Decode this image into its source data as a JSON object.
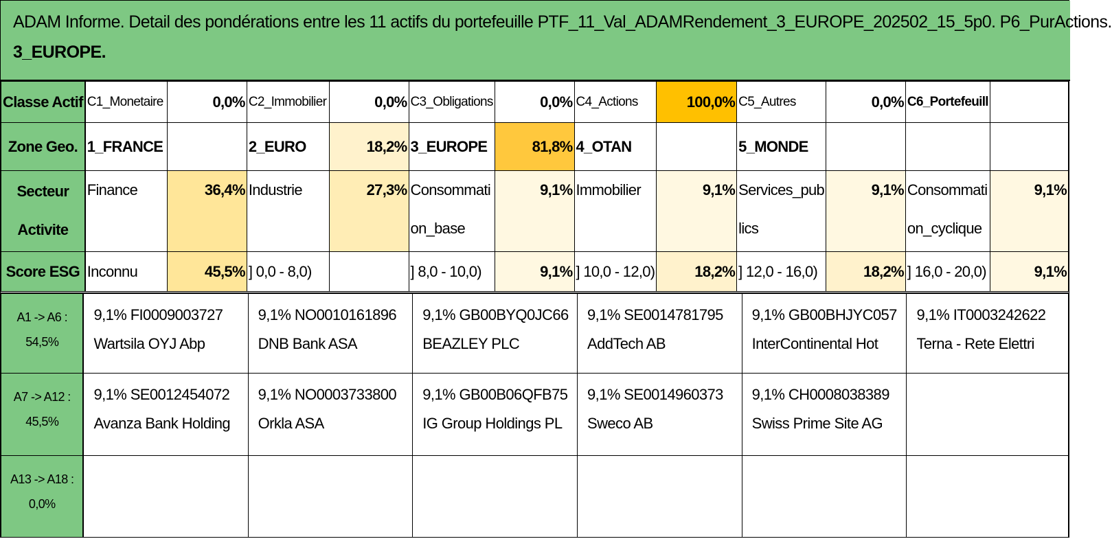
{
  "title_line1": "ADAM Informe. Detail des pondérations entre les 11 actifs du portefeuille PTF_11_Val_ADAMRendement_3_EUROPE_202502_15_5p0. P6_PurActions.",
  "title_line2": "3_EUROPE.",
  "colors": {
    "header_green": "#7ec883",
    "highlight_strong": "#ffc000",
    "highlight_mid": "#ffd966",
    "highlight_light": "#fff2cc"
  },
  "rows": {
    "classe": {
      "header": "Classe Actif",
      "cells": [
        {
          "label": "C1_Monetaire",
          "value": "0,0%"
        },
        {
          "label": "C2_Immobilier",
          "value": "0,0%"
        },
        {
          "label": "C3_Obligations",
          "value": "0,0%"
        },
        {
          "label": "C4_Actions",
          "value": "100,0%"
        },
        {
          "label": "C5_Autres",
          "value": "0,0%"
        },
        {
          "label": "C6_Portefeuill",
          "value": ""
        }
      ]
    },
    "zone": {
      "header": "Zone Geo.",
      "cells": [
        {
          "label": "1_FRANCE",
          "value": ""
        },
        {
          "label": "2_EURO",
          "value": "18,2%"
        },
        {
          "label": "3_EUROPE",
          "value": "81,8%"
        },
        {
          "label": "4_OTAN",
          "value": ""
        },
        {
          "label": "5_MONDE",
          "value": ""
        },
        {
          "label": "",
          "value": ""
        }
      ]
    },
    "secteur": {
      "header_line1": "Secteur",
      "header_line2": "Activite",
      "cells": [
        {
          "label1": "Finance",
          "label2": "",
          "value": "36,4%"
        },
        {
          "label1": "Industrie",
          "label2": "",
          "value": "27,3%"
        },
        {
          "label1": "Consommati",
          "label2": "on_base",
          "value": "9,1%"
        },
        {
          "label1": "Immobilier",
          "label2": "",
          "value": "9,1%"
        },
        {
          "label1": "Services_pub",
          "label2": "lics",
          "value": "9,1%"
        },
        {
          "label1": "Consommati",
          "label2": "on_cyclique",
          "value": "9,1%"
        }
      ]
    },
    "esg": {
      "header": "Score ESG",
      "cells": [
        {
          "label": "Inconnu",
          "value": "45,5%"
        },
        {
          "label": "] 0,0 - 8,0)",
          "value": ""
        },
        {
          "label": "] 8,0 - 10,0)",
          "value": "9,1%"
        },
        {
          "label": "] 10,0 - 12,0)",
          "value": "18,2%"
        },
        {
          "label": "] 12,0 - 16,0)",
          "value": "18,2%"
        },
        {
          "label": "] 16,0 - 20,0)",
          "value": "9,1%"
        }
      ]
    }
  },
  "asset_rows": [
    {
      "header_line1": "A1 -> A6 :",
      "header_line2": "54,5%",
      "assets": [
        {
          "line1": "9,1% FI0009003727",
          "line2": "Wartsila OYJ Abp"
        },
        {
          "line1": "9,1% NO0010161896",
          "line2": "DNB Bank ASA"
        },
        {
          "line1": "9,1% GB00BYQ0JC66",
          "line2": "BEAZLEY PLC"
        },
        {
          "line1": "9,1% SE0014781795",
          "line2": "AddTech AB"
        },
        {
          "line1": "9,1% GB00BHJYC057",
          "line2": "InterContinental Hot"
        },
        {
          "line1": "9,1% IT0003242622",
          "line2": "Terna - Rete Elettri"
        }
      ]
    },
    {
      "header_line1": "A7 -> A12 :",
      "header_line2": "45,5%",
      "assets": [
        {
          "line1": "9,1% SE0012454072",
          "line2": "Avanza Bank Holding"
        },
        {
          "line1": "9,1% NO0003733800",
          "line2": "Orkla ASA"
        },
        {
          "line1": "9,1% GB00B06QFB75",
          "line2": "IG Group Holdings PL"
        },
        {
          "line1": "9,1% SE0014960373",
          "line2": "Sweco AB"
        },
        {
          "line1": "9,1% CH0008038389",
          "line2": "Swiss Prime Site AG"
        },
        {
          "line1": "",
          "line2": ""
        }
      ]
    },
    {
      "header_line1": "A13 -> A18 :",
      "header_line2": "0,0%",
      "assets": [
        {
          "line1": "",
          "line2": ""
        },
        {
          "line1": "",
          "line2": ""
        },
        {
          "line1": "",
          "line2": ""
        },
        {
          "line1": "",
          "line2": ""
        },
        {
          "line1": "",
          "line2": ""
        },
        {
          "line1": "",
          "line2": ""
        }
      ]
    }
  ]
}
